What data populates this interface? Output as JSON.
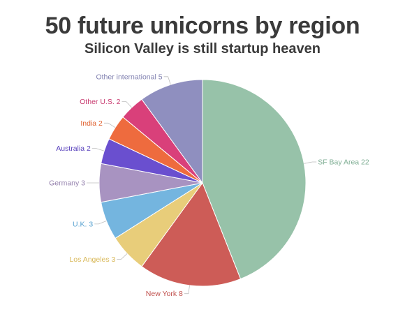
{
  "header": {
    "title": "50 future unicorns by region",
    "subtitle": "Silicon Valley is still startup heaven"
  },
  "chart_data": {
    "type": "pie",
    "title": "50 future unicorns by region",
    "subtitle": "Silicon Valley is still startup heaven",
    "slices": [
      {
        "label": "SF Bay Area",
        "value": 22,
        "color": "#97c2a9",
        "label_color": "#7fae94"
      },
      {
        "label": "New York",
        "value": 8,
        "color": "#cd5c57",
        "label_color": "#c0504d"
      },
      {
        "label": "Los Angeles",
        "value": 3,
        "color": "#e8cd7a",
        "label_color": "#d9b95a"
      },
      {
        "label": "U.K.",
        "value": 3,
        "color": "#74b5df",
        "label_color": "#5aa3d1"
      },
      {
        "label": "Germany",
        "value": 3,
        "color": "#a893c1",
        "label_color": "#9480ad"
      },
      {
        "label": "Australia",
        "value": 2,
        "color": "#6a4fcf",
        "label_color": "#5a43bd"
      },
      {
        "label": "India",
        "value": 2,
        "color": "#ee6b3e",
        "label_color": "#e0612f"
      },
      {
        "label": "Other U.S.",
        "value": 2,
        "color": "#d9407a",
        "label_color": "#c83a6f"
      },
      {
        "label": "Other international",
        "value": 5,
        "color": "#8f8fbf",
        "label_color": "#8080b0"
      }
    ],
    "legend": "none",
    "labels": "outside with leader lines"
  }
}
